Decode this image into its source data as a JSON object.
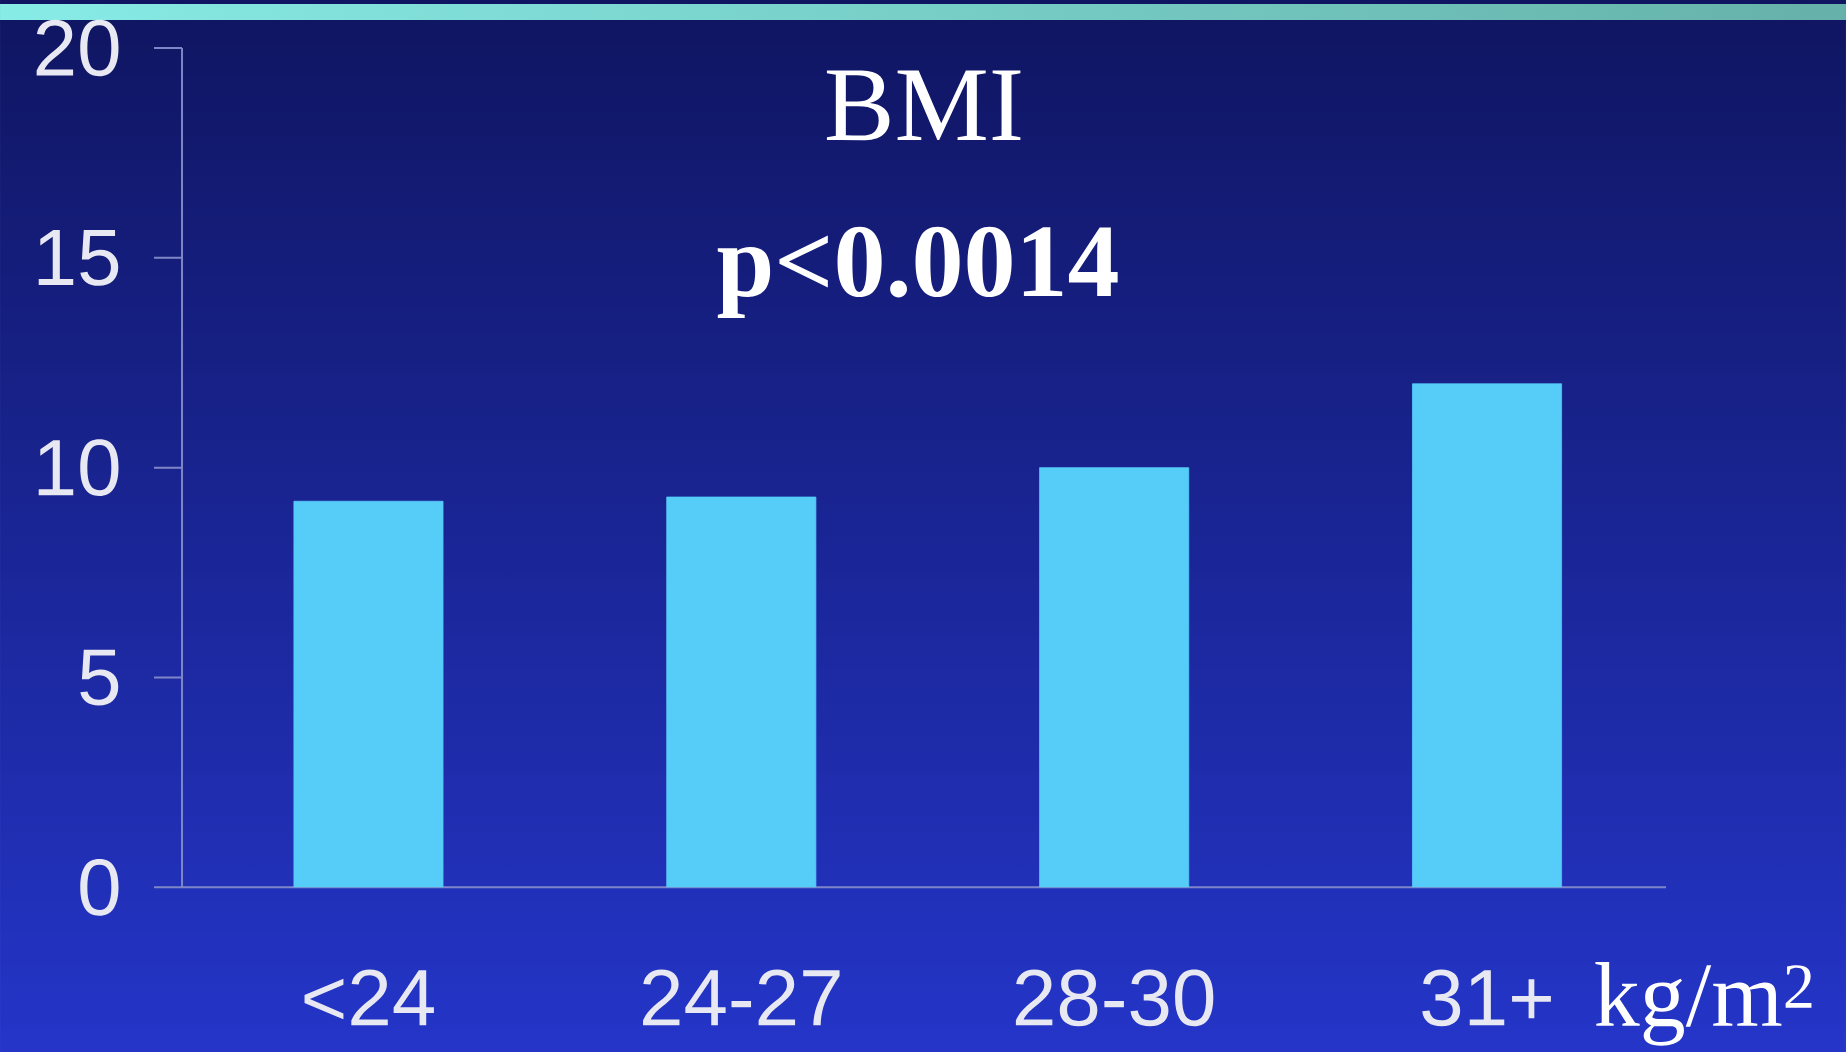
{
  "chart_data": {
    "type": "bar",
    "title": "BMI",
    "subtitle": "p<0.0014",
    "xlabel": "kg/m$^{2}$",
    "categories": [
      "<24",
      "24-27",
      "28-30",
      "31+"
    ],
    "values": [
      9.2,
      9.3,
      10,
      12
    ],
    "color": "#56cdf9",
    "ylim": [
      0,
      20
    ],
    "yticks": [
      0,
      5,
      10,
      15,
      20
    ]
  }
}
